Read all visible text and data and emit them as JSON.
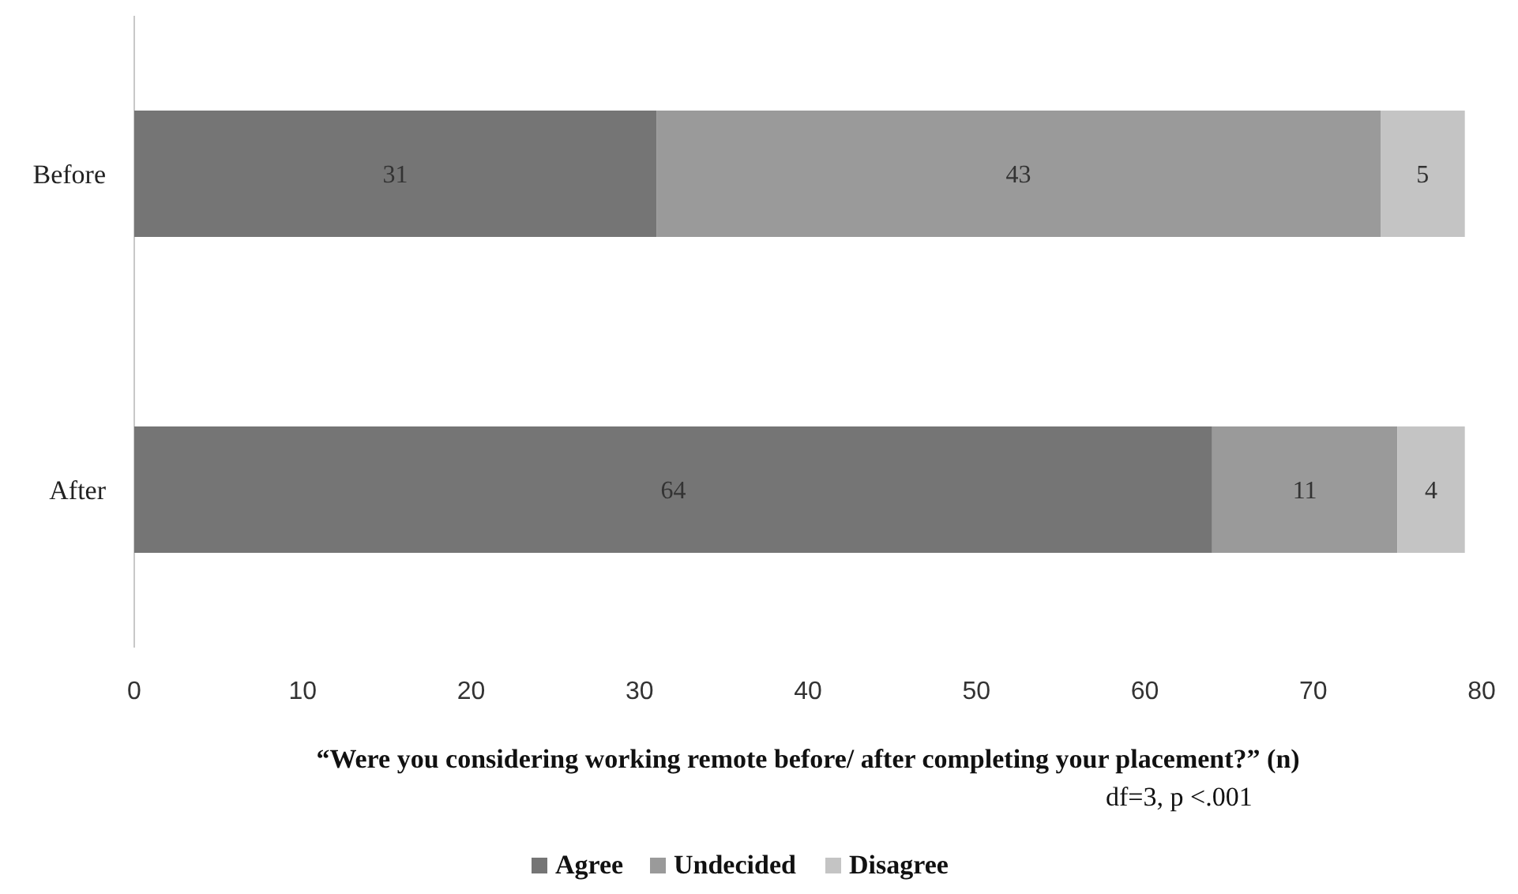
{
  "chart_data": {
    "type": "bar",
    "orientation": "horizontal",
    "stacked": true,
    "categories": [
      "Before",
      "After"
    ],
    "series": [
      {
        "name": "Agree",
        "color": "#757575",
        "values": [
          31,
          64
        ]
      },
      {
        "name": "Undecided",
        "color": "#9a9a9a",
        "values": [
          43,
          11
        ]
      },
      {
        "name": "Disagree",
        "color": "#c4c4c4",
        "values": [
          5,
          4
        ]
      }
    ],
    "xlim": [
      0,
      80
    ],
    "xticks": [
      0,
      10,
      20,
      30,
      40,
      50,
      60,
      70,
      80
    ],
    "xlabel": "“Were you considering working remote before/ after completing your placement?” (n)",
    "annotations": [
      "df=3, p <.001"
    ],
    "data_labels": true,
    "grid": false,
    "legend": "bottom"
  }
}
